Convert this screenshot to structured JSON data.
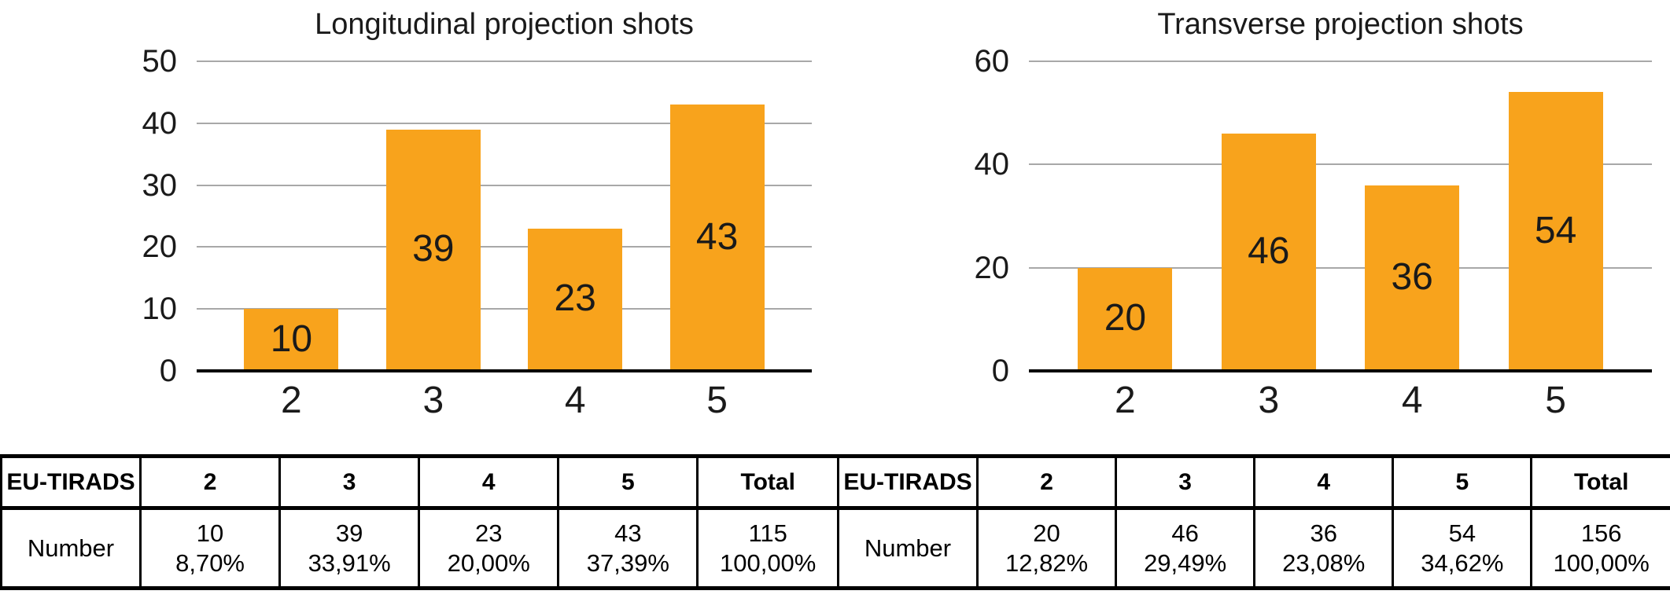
{
  "colors": {
    "bar": "#F8A31C",
    "grid": "#A8A8A8",
    "axis": "#000000",
    "text": "#1a1a1a"
  },
  "charts": [
    {
      "title": "Longitudinal projection shots",
      "categories": [
        "2",
        "3",
        "4",
        "5"
      ],
      "values": [
        10,
        39,
        23,
        43
      ],
      "bar_labels": [
        "10",
        "39",
        "23",
        "43"
      ],
      "y_ticks": [
        0,
        10,
        20,
        30,
        40,
        50
      ],
      "y_max": 50
    },
    {
      "title": "Transverse projection shots",
      "categories": [
        "2",
        "3",
        "4",
        "5"
      ],
      "values": [
        20,
        46,
        36,
        54
      ],
      "bar_labels": [
        "20",
        "46",
        "36",
        "54"
      ],
      "y_ticks": [
        0,
        20,
        40,
        60
      ],
      "y_max": 60
    }
  ],
  "chart_data": [
    {
      "type": "bar",
      "title": "Longitudinal projection shots",
      "categories": [
        "2",
        "3",
        "4",
        "5"
      ],
      "values": [
        10,
        39,
        23,
        43
      ],
      "xlabel": "",
      "ylabel": "",
      "ylim": [
        0,
        50
      ],
      "yticks": [
        0,
        10,
        20,
        30,
        40,
        50
      ],
      "grid": true,
      "legend": "none",
      "bar_color": "#F8A31C"
    },
    {
      "type": "bar",
      "title": "Transverse projection shots",
      "categories": [
        "2",
        "3",
        "4",
        "5"
      ],
      "values": [
        20,
        46,
        36,
        54
      ],
      "xlabel": "",
      "ylabel": "",
      "ylim": [
        0,
        60
      ],
      "yticks": [
        0,
        20,
        40,
        60
      ],
      "grid": true,
      "legend": "none",
      "bar_color": "#F8A31C"
    },
    {
      "type": "table",
      "columns": [
        "EU-TIRADS",
        "2",
        "3",
        "4",
        "5",
        "Total"
      ],
      "rows": [
        [
          "Number",
          "10 | 8,70%",
          "39 | 33,91%",
          "23 | 20,00%",
          "43 | 37,39%",
          "115 | 100,00%"
        ]
      ]
    },
    {
      "type": "table",
      "columns": [
        "EU-TIRADS",
        "2",
        "3",
        "4",
        "5",
        "Total"
      ],
      "rows": [
        [
          "Number",
          "20 | 12,82%",
          "46 | 29,49%",
          "36 | 23,08%",
          "54 | 34,62%",
          "156 | 100,00%"
        ]
      ]
    }
  ],
  "tables": [
    {
      "header": [
        "EU-TIRADS",
        "2",
        "3",
        "4",
        "5",
        "Total"
      ],
      "row_label": "Number",
      "cells": [
        {
          "value": "10",
          "percent": "8,70%"
        },
        {
          "value": "39",
          "percent": "33,91%"
        },
        {
          "value": "23",
          "percent": "20,00%"
        },
        {
          "value": "43",
          "percent": "37,39%"
        },
        {
          "value": "115",
          "percent": "100,00%"
        }
      ]
    },
    {
      "header": [
        "EU-TIRADS",
        "2",
        "3",
        "4",
        "5",
        "Total"
      ],
      "row_label": "Number",
      "cells": [
        {
          "value": "20",
          "percent": "12,82%"
        },
        {
          "value": "46",
          "percent": "29,49%"
        },
        {
          "value": "36",
          "percent": "23,08%"
        },
        {
          "value": "54",
          "percent": "34,62%"
        },
        {
          "value": "156",
          "percent": "100,00%"
        }
      ]
    }
  ]
}
